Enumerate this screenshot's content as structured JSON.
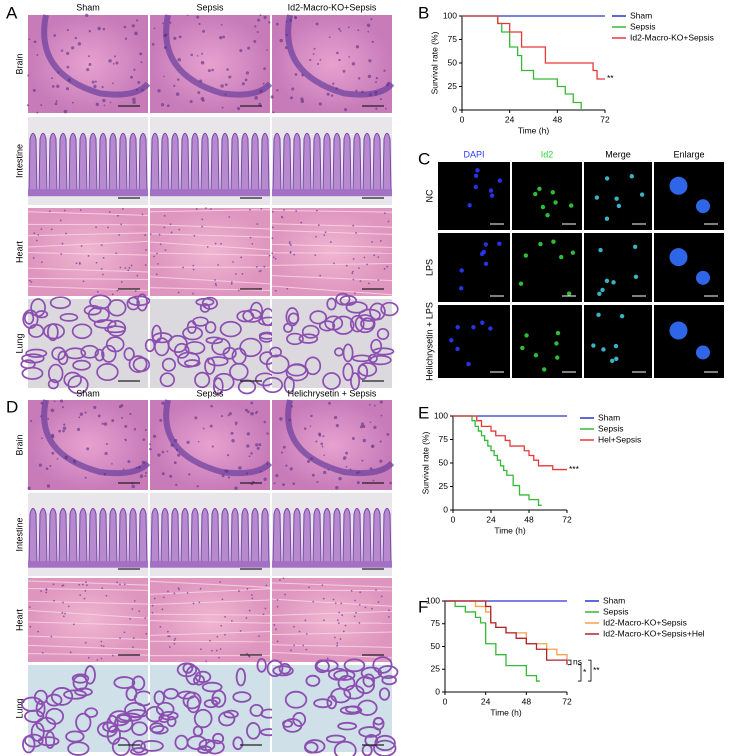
{
  "panel_labels": [
    "A",
    "B",
    "C",
    "D",
    "E",
    "F"
  ],
  "histology_A": {
    "columns": [
      "Sham",
      "Sepsis",
      "Id2-Macro-KO+Sepsis"
    ],
    "rows": [
      "Brain",
      "Intestine",
      "Heart",
      "Lung"
    ]
  },
  "fluorescence_C": {
    "columns": [
      "DAPI",
      "Id2",
      "Merge",
      "Enlarge"
    ],
    "rows": [
      "NC",
      "LPS",
      "Helichrysetin + LPS"
    ]
  },
  "histology_D": {
    "columns": [
      "Sham",
      "Sepsis",
      "Helichrysetin + Sepsis"
    ],
    "rows": [
      "Brain",
      "Intestine",
      "Heart",
      "Lung"
    ]
  },
  "chart_data": [
    {
      "type": "step",
      "y_label": "Survival rate (%)",
      "x_label": "Time (h)",
      "xlim": [
        0,
        72
      ],
      "xticks": [
        0,
        24,
        48,
        72
      ],
      "ylim": [
        0,
        100
      ],
      "yticks": [
        0,
        25,
        50,
        75,
        100
      ],
      "annotation": "**",
      "series": [
        {
          "name": "Sham",
          "color": "#2a35c8",
          "x": [
            0,
            72
          ],
          "values": [
            100,
            100
          ]
        },
        {
          "name": "Sepsis",
          "color": "#36b936",
          "x": [
            0,
            18,
            20,
            24,
            28,
            30,
            36,
            48,
            52,
            56,
            60
          ],
          "values": [
            100,
            92,
            83,
            67,
            58,
            42,
            33,
            25,
            17,
            8,
            0
          ]
        },
        {
          "name": "Id2-Macro-KO+Sepsis",
          "color": "#e8383a",
          "x": [
            0,
            18,
            24,
            30,
            42,
            66,
            68,
            72
          ],
          "values": [
            100,
            92,
            83,
            67,
            50,
            42,
            33,
            33
          ]
        }
      ]
    },
    {
      "type": "step",
      "y_label": "Survival rate (%)",
      "x_label": "Time (h)",
      "xlim": [
        0,
        72
      ],
      "xticks": [
        0,
        24,
        48,
        72
      ],
      "ylim": [
        0,
        100
      ],
      "yticks": [
        0,
        25,
        50,
        75,
        100
      ],
      "annotation": "***",
      "series": [
        {
          "name": "Sham",
          "color": "#2a35c8",
          "x": [
            0,
            72
          ],
          "values": [
            100,
            100
          ]
        },
        {
          "name": "Sepsis",
          "color": "#36b936",
          "x": [
            0,
            12,
            14,
            16,
            18,
            20,
            22,
            24,
            26,
            28,
            30,
            32,
            34,
            38,
            42,
            48,
            54,
            56
          ],
          "values": [
            100,
            95,
            89,
            84,
            79,
            74,
            68,
            63,
            58,
            53,
            47,
            42,
            37,
            26,
            16,
            11,
            5,
            5
          ]
        },
        {
          "name": "Hel+Sepsis",
          "color": "#e8383a",
          "x": [
            0,
            15,
            18,
            24,
            27,
            33,
            36,
            45,
            48,
            51,
            54,
            63,
            72
          ],
          "values": [
            100,
            95,
            89,
            84,
            79,
            74,
            68,
            63,
            58,
            53,
            47,
            43,
            43
          ]
        }
      ]
    },
    {
      "type": "step",
      "x_label": "Time (h)",
      "xlim": [
        0,
        72
      ],
      "xticks": [
        0,
        24,
        48,
        72
      ],
      "ylim": [
        0,
        100
      ],
      "yticks": [
        0,
        25,
        50,
        75,
        100
      ],
      "annotations": [
        "ns",
        "*",
        "**"
      ],
      "series": [
        {
          "name": "Sham",
          "color": "#2a35c8",
          "x": [
            0,
            72
          ],
          "values": [
            100,
            100
          ]
        },
        {
          "name": "Sepsis",
          "color": "#36b936",
          "x": [
            0,
            6,
            12,
            18,
            21,
            24,
            30,
            36,
            48,
            54,
            56
          ],
          "values": [
            100,
            94,
            88,
            82,
            76,
            53,
            41,
            29,
            18,
            12,
            12
          ]
        },
        {
          "name": "Id2-Macro-KO+Sepsis",
          "color": "#f5a24c",
          "x": [
            0,
            18,
            24,
            27,
            30,
            36,
            48,
            60,
            66,
            72
          ],
          "values": [
            100,
            94,
            88,
            76,
            71,
            65,
            53,
            47,
            41,
            35
          ]
        },
        {
          "name": "Id2-Macro-KO+Sepsis+Hel",
          "color": "#b3222c",
          "x": [
            0,
            24,
            27,
            30,
            36,
            42,
            48,
            54,
            60,
            72
          ],
          "values": [
            100,
            94,
            76,
            71,
            65,
            59,
            53,
            47,
            35,
            30
          ]
        }
      ]
    }
  ]
}
